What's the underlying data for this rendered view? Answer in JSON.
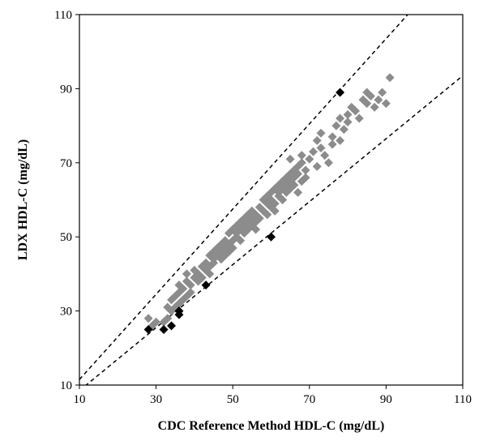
{
  "chart_data": {
    "type": "scatter",
    "xlabel": "CDC Reference Method HDL-C (mg/dL)",
    "ylabel": "LDX HDL-C (mg/dL)",
    "xlim": [
      10,
      110
    ],
    "ylim": [
      10,
      110
    ],
    "x_ticks": [
      10,
      30,
      50,
      70,
      90,
      110
    ],
    "y_ticks": [
      10,
      30,
      50,
      70,
      90,
      110
    ],
    "grid": false,
    "legend": "none",
    "marker": "diamond",
    "colors": {
      "within": "#8c8c8c",
      "outside": "#000000",
      "limit_lines": "#000000"
    },
    "limit_lines": [
      {
        "name": "upper",
        "style": "dashed",
        "x": [
          10,
          110
        ],
        "y": [
          11.5,
          126.5
        ]
      },
      {
        "name": "lower",
        "style": "dashed",
        "x": [
          10,
          110
        ],
        "y": [
          8.5,
          93.5
        ]
      }
    ],
    "series": [
      {
        "group": "within",
        "points": [
          [
            28,
            28
          ],
          [
            29,
            26
          ],
          [
            30,
            27
          ],
          [
            32,
            27
          ],
          [
            33,
            28
          ],
          [
            33,
            31
          ],
          [
            34,
            30
          ],
          [
            34,
            33
          ],
          [
            35,
            31
          ],
          [
            35,
            34
          ],
          [
            36,
            32
          ],
          [
            36,
            35
          ],
          [
            36,
            37
          ],
          [
            37,
            33
          ],
          [
            37,
            36
          ],
          [
            38,
            34
          ],
          [
            38,
            38
          ],
          [
            38,
            40
          ],
          [
            39,
            35
          ],
          [
            39,
            37
          ],
          [
            40,
            39
          ],
          [
            40,
            41
          ],
          [
            41,
            38
          ],
          [
            41,
            40
          ],
          [
            42,
            42
          ],
          [
            42,
            39
          ],
          [
            43,
            41
          ],
          [
            43,
            43
          ],
          [
            44,
            40
          ],
          [
            44,
            42
          ],
          [
            44,
            45
          ],
          [
            45,
            43
          ],
          [
            45,
            46
          ],
          [
            45,
            44
          ],
          [
            46,
            47
          ],
          [
            46,
            45
          ],
          [
            47,
            44
          ],
          [
            47,
            48
          ],
          [
            47,
            46
          ],
          [
            48,
            45
          ],
          [
            48,
            47
          ],
          [
            48,
            49
          ],
          [
            49,
            48
          ],
          [
            49,
            51
          ],
          [
            49,
            46
          ],
          [
            50,
            49
          ],
          [
            50,
            52
          ],
          [
            50,
            47
          ],
          [
            51,
            50
          ],
          [
            51,
            53
          ],
          [
            51,
            51
          ],
          [
            52,
            49
          ],
          [
            52,
            52
          ],
          [
            52,
            54
          ],
          [
            53,
            51
          ],
          [
            53,
            55
          ],
          [
            53,
            53
          ],
          [
            54,
            52
          ],
          [
            54,
            56
          ],
          [
            54,
            54
          ],
          [
            55,
            53
          ],
          [
            55,
            57
          ],
          [
            55,
            55
          ],
          [
            56,
            54
          ],
          [
            56,
            52
          ],
          [
            56,
            56
          ],
          [
            57,
            58
          ],
          [
            57,
            55
          ],
          [
            58,
            57
          ],
          [
            58,
            60
          ],
          [
            59,
            56
          ],
          [
            59,
            59
          ],
          [
            59,
            61
          ],
          [
            60,
            58
          ],
          [
            60,
            62
          ],
          [
            60,
            60
          ],
          [
            61,
            59
          ],
          [
            61,
            63
          ],
          [
            61,
            57
          ],
          [
            62,
            61
          ],
          [
            62,
            64
          ],
          [
            62,
            62
          ],
          [
            63,
            60
          ],
          [
            63,
            63
          ],
          [
            63,
            65
          ],
          [
            64,
            62
          ],
          [
            64,
            66
          ],
          [
            64,
            64
          ],
          [
            65,
            63
          ],
          [
            65,
            67
          ],
          [
            65,
            65
          ],
          [
            65,
            71
          ],
          [
            66,
            64
          ],
          [
            66,
            68
          ],
          [
            66,
            66
          ],
          [
            67,
            62
          ],
          [
            67,
            69
          ],
          [
            67,
            67
          ],
          [
            68,
            65
          ],
          [
            68,
            70
          ],
          [
            68,
            72
          ],
          [
            69,
            68
          ],
          [
            69,
            66
          ],
          [
            70,
            71
          ],
          [
            71,
            73
          ],
          [
            72,
            69
          ],
          [
            72,
            76
          ],
          [
            73,
            78
          ],
          [
            73,
            74
          ],
          [
            74,
            72
          ],
          [
            75,
            70
          ],
          [
            76,
            77
          ],
          [
            76,
            75
          ],
          [
            77,
            80
          ],
          [
            78,
            76
          ],
          [
            78,
            82
          ],
          [
            79,
            79
          ],
          [
            80,
            83
          ],
          [
            80,
            81
          ],
          [
            81,
            85
          ],
          [
            82,
            84
          ],
          [
            83,
            82
          ],
          [
            84,
            87
          ],
          [
            85,
            86
          ],
          [
            85,
            89
          ],
          [
            86,
            88
          ],
          [
            87,
            85
          ],
          [
            88,
            87
          ],
          [
            89,
            89
          ],
          [
            90,
            86
          ],
          [
            91,
            93
          ]
        ]
      },
      {
        "group": "outside",
        "points": [
          [
            28,
            25
          ],
          [
            32,
            25
          ],
          [
            34,
            26
          ],
          [
            36,
            29
          ],
          [
            36,
            30
          ],
          [
            43,
            37
          ],
          [
            60,
            50
          ],
          [
            78,
            89
          ]
        ]
      }
    ]
  }
}
